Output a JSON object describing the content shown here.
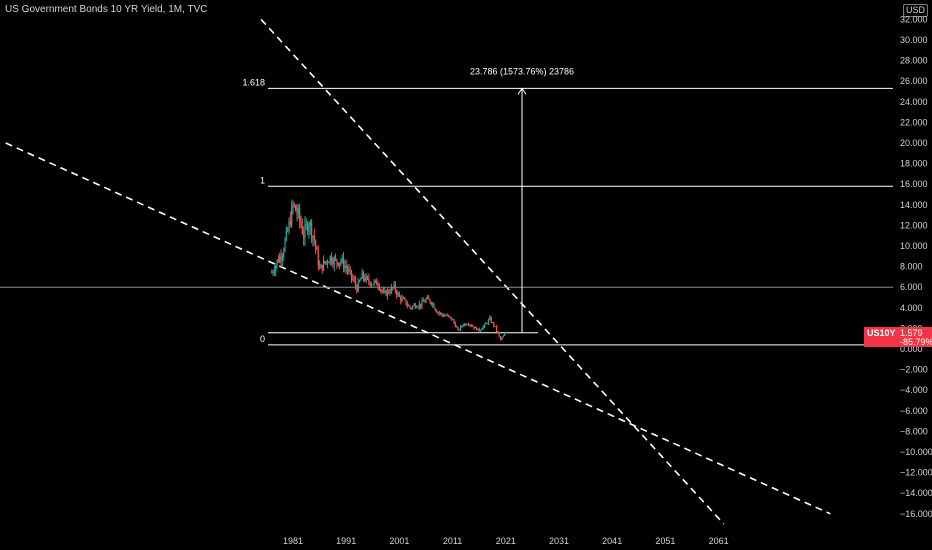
{
  "header": {
    "title": "US Government Bonds 10 YR Yield, 1M, TVC",
    "currency": "USD"
  },
  "price_tag": {
    "symbol": "US10Y",
    "value": "1.579",
    "change": "-85.79%"
  },
  "colors": {
    "background": "#000000",
    "up": "#26a69a",
    "down": "#ef5350",
    "accent": "#f23645",
    "lines": "#ffffff",
    "axis_text": "#d1d4dc"
  },
  "chart_data": {
    "type": "candlestick",
    "title": "US Government Bonds 10 YR Yield, 1M, TVC",
    "y_axis": {
      "position": "right",
      "ticks": [
        "32.000",
        "30.000",
        "28.000",
        "26.000",
        "24.000",
        "22.000",
        "20.000",
        "18.000",
        "16.000",
        "14.000",
        "12.000",
        "10.000",
        "8.000",
        "6.000",
        "4.000",
        "2.000",
        "0.000",
        "−2.000",
        "−4.000",
        "−6.000",
        "−8.000",
        "−10.000",
        "−12.000",
        "−14.000",
        "−16.000"
      ],
      "range": [
        -16,
        32
      ]
    },
    "x_axis": {
      "ticks": [
        "1981",
        "1991",
        "2001",
        "2011",
        "2021",
        "2031",
        "2041",
        "2051",
        "2061"
      ]
    },
    "fib_levels": [
      {
        "label": "1.618",
        "value": 25.3
      },
      {
        "label": "1",
        "value": 15.8
      },
      {
        "label": "0",
        "value": 0.4
      }
    ],
    "projection": {
      "label": "23.786 (1573.76%) 23786",
      "from": 1.58,
      "to": 25.3
    },
    "support_level": 6.0,
    "last_price_level": 1.58,
    "yield_series": {
      "x": [
        1977,
        1978,
        1979,
        1980,
        1981,
        1982,
        1983,
        1984,
        1985,
        1986,
        1987,
        1988,
        1989,
        1990,
        1991,
        1992,
        1993,
        1994,
        1995,
        1996,
        1997,
        1998,
        1999,
        2000,
        2001,
        2002,
        2003,
        2004,
        2005,
        2006,
        2007,
        2008,
        2009,
        2010,
        2011,
        2012,
        2013,
        2014,
        2015,
        2016,
        2017,
        2018,
        2019,
        2020,
        2021
      ],
      "y": [
        7.4,
        8.5,
        9.4,
        11.4,
        13.9,
        13.0,
        11.1,
        12.4,
        10.6,
        7.7,
        8.4,
        8.9,
        8.5,
        8.6,
        7.9,
        7.0,
        5.9,
        7.1,
        6.6,
        6.4,
        6.4,
        5.3,
        5.6,
        6.0,
        5.0,
        4.6,
        4.0,
        4.3,
        4.3,
        4.8,
        4.6,
        3.7,
        3.3,
        3.2,
        2.8,
        1.8,
        2.4,
        2.5,
        2.1,
        1.8,
        2.3,
        2.9,
        2.1,
        0.9,
        1.6
      ]
    },
    "trendlines": [
      {
        "name": "upper-wedge",
        "points": [
          [
            1975,
            32
          ],
          [
            2062,
            -17
          ]
        ]
      },
      {
        "name": "lower-wedge",
        "points": [
          [
            1927,
            20
          ],
          [
            2082,
            -16
          ]
        ]
      }
    ]
  }
}
